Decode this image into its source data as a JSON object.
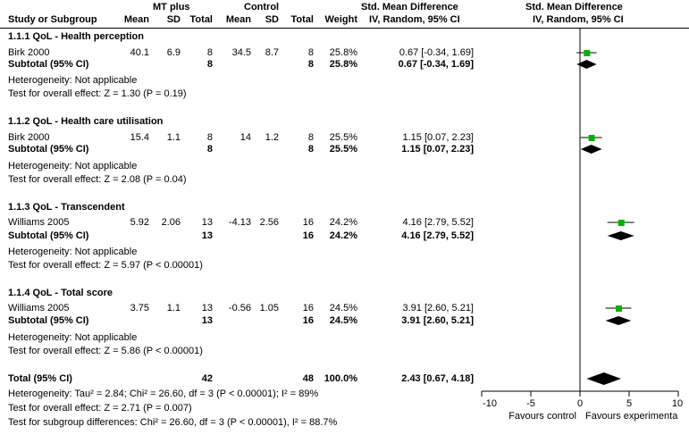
{
  "header": {
    "group1": "MT plus",
    "group2": "Control",
    "smd_title": "Std. Mean Difference",
    "smd_title_plot": "Std. Mean Difference",
    "study_col": "Study or Subgroup",
    "mean1": "Mean",
    "sd1": "SD",
    "total1": "Total",
    "mean2": "Mean",
    "sd2": "SD",
    "total2": "Total",
    "weight": "Weight",
    "ci_method": "IV, Random, 95% CI",
    "ci_method_plot": "IV, Random, 95% CI"
  },
  "subgroups": [
    {
      "title": "1.1.1 QoL - Health perception",
      "study": {
        "name": "Birk 2000",
        "mean1": "40.1",
        "sd1": "6.9",
        "total1": "8",
        "mean2": "34.5",
        "sd2": "8.7",
        "total2": "8",
        "weight": "25.8%",
        "ci": "0.67 [-0.34, 1.69]"
      },
      "subtotal": {
        "label": "Subtotal (95% CI)",
        "total1": "8",
        "total2": "8",
        "weight": "25.8%",
        "ci": "0.67 [-0.34, 1.69]"
      },
      "heterogeneity": "Heterogeneity: Not applicable",
      "overall": "Test for overall effect: Z = 1.30 (P = 0.19)"
    },
    {
      "title": "1.1.2 QoL - Health care utilisation",
      "study": {
        "name": "Birk 2000",
        "mean1": "15.4",
        "sd1": "1.1",
        "total1": "8",
        "mean2": "14",
        "sd2": "1.2",
        "total2": "8",
        "weight": "25.5%",
        "ci": "1.15 [0.07, 2.23]"
      },
      "subtotal": {
        "label": "Subtotal (95% CI)",
        "total1": "8",
        "total2": "8",
        "weight": "25.5%",
        "ci": "1.15 [0.07, 2.23]"
      },
      "heterogeneity": "Heterogeneity: Not applicable",
      "overall": "Test for overall effect: Z = 2.08 (P = 0.04)"
    },
    {
      "title": "1.1.3 QoL - Transcendent",
      "study": {
        "name": "Williams 2005",
        "mean1": "5.92",
        "sd1": "2.06",
        "total1": "13",
        "mean2": "-4.13",
        "sd2": "2.56",
        "total2": "16",
        "weight": "24.2%",
        "ci": "4.16 [2.79, 5.52]"
      },
      "subtotal": {
        "label": "Subtotal (95% CI)",
        "total1": "13",
        "total2": "16",
        "weight": "24.2%",
        "ci": "4.16 [2.79, 5.52]"
      },
      "heterogeneity": "Heterogeneity: Not applicable",
      "overall": "Test for overall effect: Z = 5.97 (P < 0.00001)"
    },
    {
      "title": "1.1.4 QoL - Total score",
      "study": {
        "name": "Williams 2005",
        "mean1": "3.75",
        "sd1": "1.1",
        "total1": "13",
        "mean2": "-0.56",
        "sd2": "1.05",
        "total2": "16",
        "weight": "24.5%",
        "ci": "3.91 [2.60, 5.21]"
      },
      "subtotal": {
        "label": "Subtotal (95% CI)",
        "total1": "13",
        "total2": "16",
        "weight": "24.5%",
        "ci": "3.91 [2.60, 5.21]"
      },
      "heterogeneity": "Heterogeneity: Not applicable",
      "overall": "Test for overall effect: Z = 5.86 (P < 0.00001)"
    }
  ],
  "total": {
    "label": "Total (95% CI)",
    "total1": "42",
    "total2": "48",
    "weight": "100.0%",
    "ci": "2.43 [0.67, 4.18]"
  },
  "footer": {
    "heterogeneity": "Heterogeneity: Tau² = 2.84; Chi² = 26.60, df = 3 (P < 0.00001); I² = 89%",
    "overall": "Test for overall effect: Z = 2.71 (P = 0.007)",
    "subgroup": "Test for subgroup differences: Chi² = 26.60, df = 3 (P < 0.00001), I² = 88.7%"
  },
  "colors": {
    "study_marker": "#00b400",
    "diamond": "#000000"
  },
  "chart_data": {
    "type": "forest",
    "xlim": [
      -10,
      10
    ],
    "xticks": [
      "-10",
      "-5",
      "0",
      "5",
      "10"
    ],
    "xlabel_left": "Favours control",
    "xlabel_right": "Favours experimenta",
    "studies": [
      {
        "label": "Birk 2000",
        "est": 0.67,
        "lo": -0.34,
        "hi": 1.69
      },
      {
        "label": "Birk 2000",
        "est": 1.15,
        "lo": 0.07,
        "hi": 2.23
      },
      {
        "label": "Williams 2005",
        "est": 4.16,
        "lo": 2.79,
        "hi": 5.52
      },
      {
        "label": "Williams 2005",
        "est": 3.91,
        "lo": 2.6,
        "hi": 5.21
      }
    ],
    "subtotals": [
      {
        "est": 0.67,
        "lo": -0.34,
        "hi": 1.69
      },
      {
        "est": 1.15,
        "lo": 0.07,
        "hi": 2.23
      },
      {
        "est": 4.16,
        "lo": 2.79,
        "hi": 5.52
      },
      {
        "est": 3.91,
        "lo": 2.6,
        "hi": 5.21
      }
    ],
    "overall": {
      "est": 2.43,
      "lo": 0.67,
      "hi": 4.18
    }
  }
}
